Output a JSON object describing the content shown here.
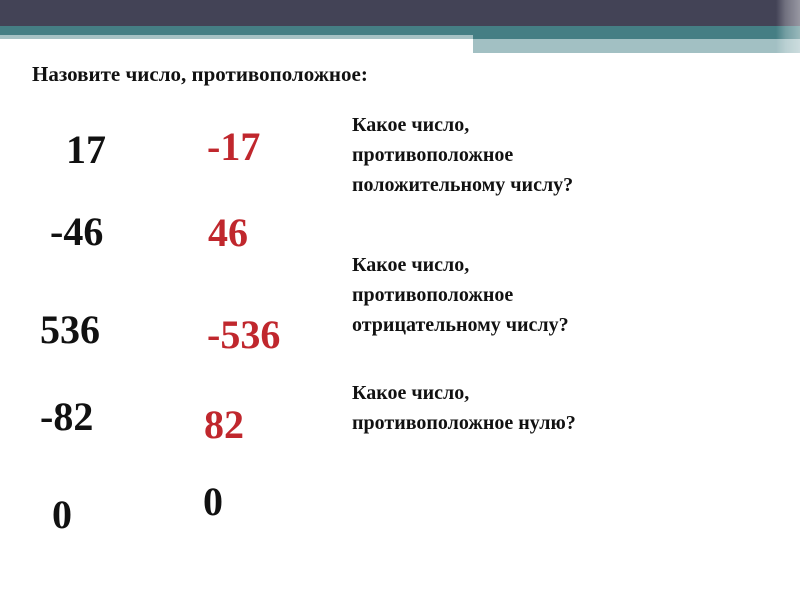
{
  "colors": {
    "header_dark": "#434356",
    "header_teal": "#457e84",
    "header_light": "#a2c0c3",
    "answer_red": "#c0272d"
  },
  "title": "Назовите число, противоположное:",
  "numbers": [
    "17",
    "-46",
    "536",
    "-82",
    "0"
  ],
  "opposites": [
    "-17",
    "46",
    "-536",
    "82",
    "0"
  ],
  "questions": [
    [
      "Какое число,",
      "противоположное",
      "положительному числу?"
    ],
    [
      "Какое число,",
      "противоположное",
      "отрицательному числу?"
    ],
    [
      "Какое число,",
      "противоположное нулю?"
    ]
  ]
}
